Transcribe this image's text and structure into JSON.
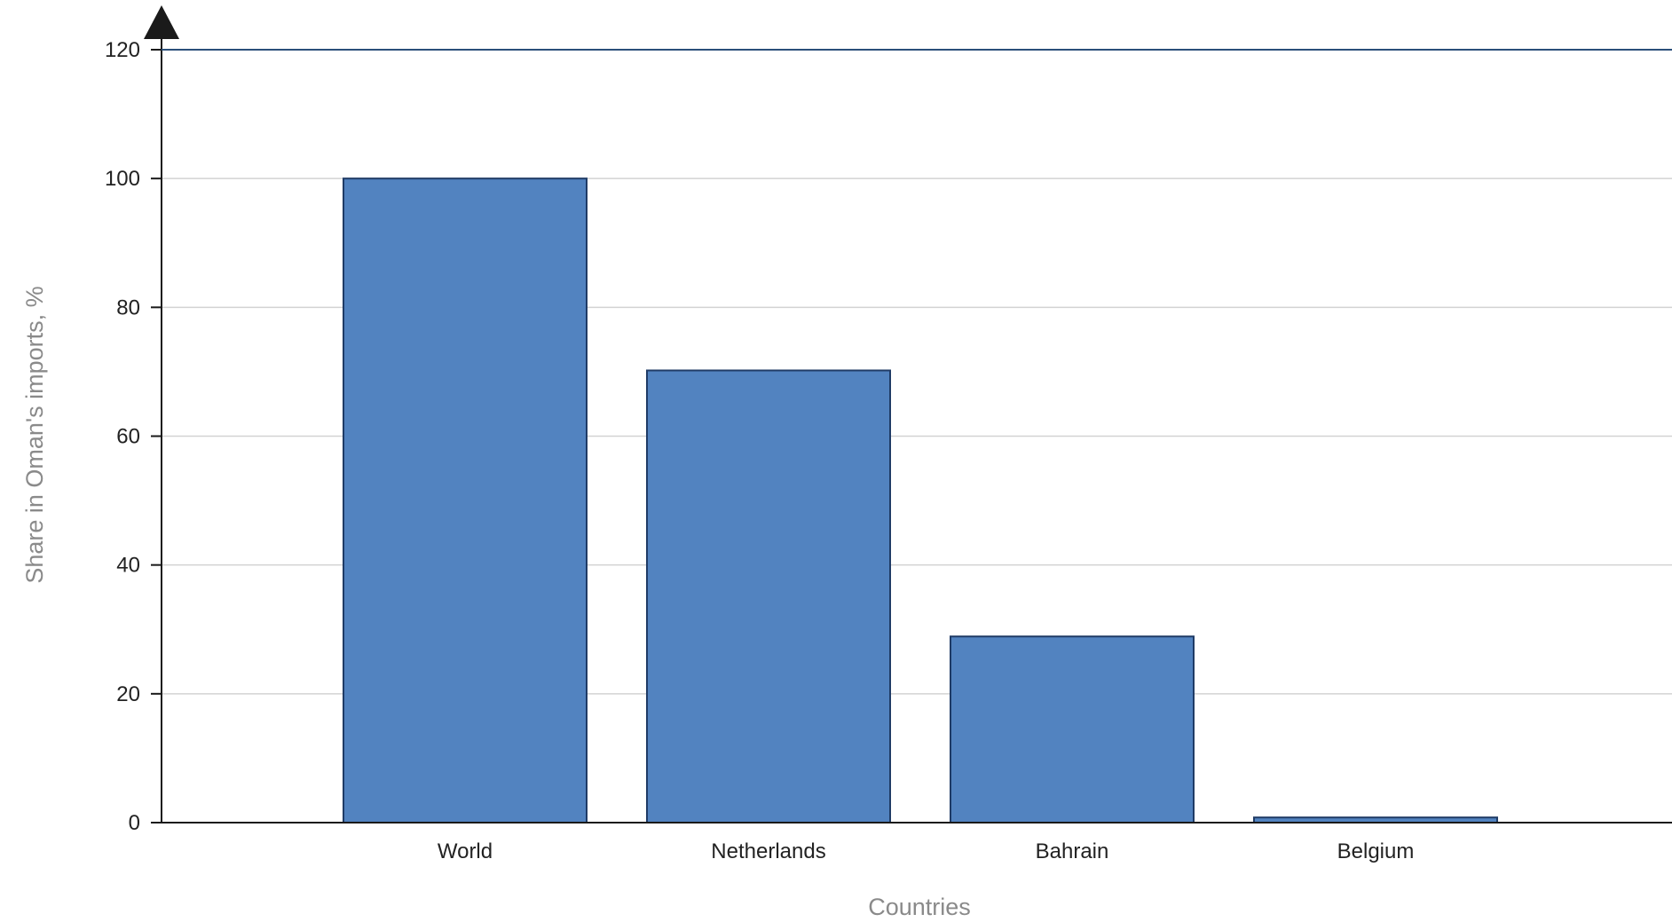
{
  "chart_data": {
    "type": "bar",
    "title": "",
    "xlabel": "Countries",
    "ylabel": "Share in Oman's imports, %",
    "categories": [
      "World",
      "Netherlands",
      "Bahrain",
      "Belgium"
    ],
    "values": [
      100,
      70.2,
      28.9,
      0.8
    ],
    "ylim": [
      0,
      120
    ],
    "yticks": [
      0,
      20,
      40,
      60,
      80,
      100,
      120
    ],
    "ytick_labels": [
      "0",
      "20",
      "40",
      "60",
      "80",
      "100",
      "120"
    ],
    "grid": true,
    "legend": "none",
    "colors": {
      "bar_fill": "#5283c0",
      "bar_edge": "#1f3b66",
      "grid": "#d3d3d3",
      "axis": "#1a1a1a",
      "top_line": "#2b4f7a"
    }
  }
}
